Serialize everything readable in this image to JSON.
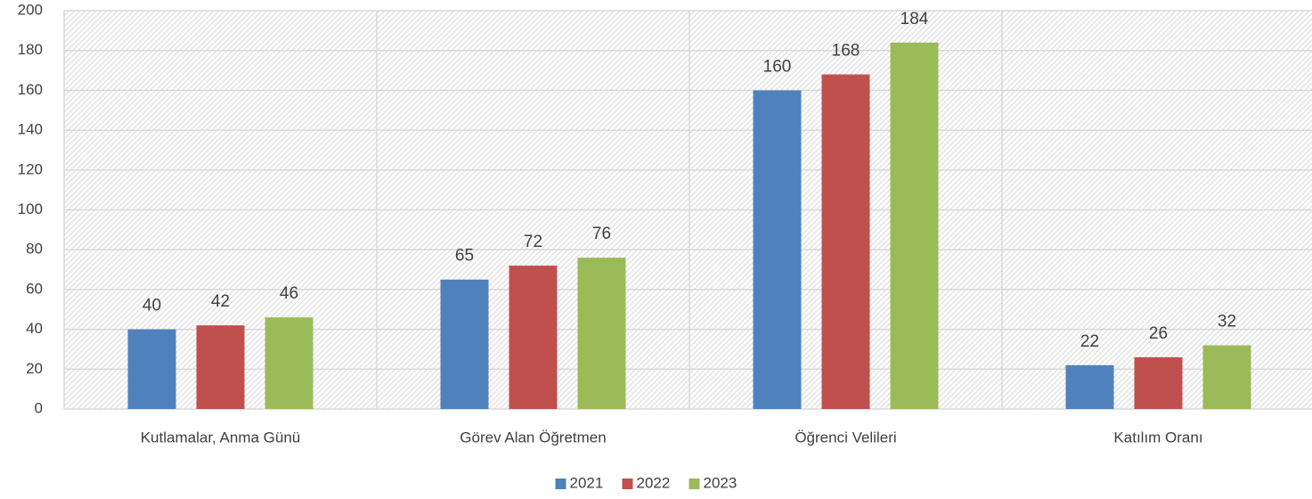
{
  "chart_data": {
    "type": "bar",
    "categories": [
      "Kutlamalar, Anma Günü",
      "Görev Alan Öğretmen",
      "Öğrenci Velileri",
      "Katılım Oranı"
    ],
    "series": [
      {
        "name": "2021",
        "color": "#4f81bd",
        "values": [
          40,
          65,
          160,
          22
        ]
      },
      {
        "name": "2022",
        "color": "#c0504d",
        "values": [
          42,
          72,
          168,
          26
        ]
      },
      {
        "name": "2023",
        "color": "#9bbb59",
        "values": [
          46,
          76,
          184,
          32
        ]
      }
    ],
    "ylim": [
      0,
      200
    ],
    "yticks": [
      0,
      20,
      40,
      60,
      80,
      100,
      120,
      140,
      160,
      180,
      200
    ],
    "grid": true,
    "legend": "bottom"
  }
}
